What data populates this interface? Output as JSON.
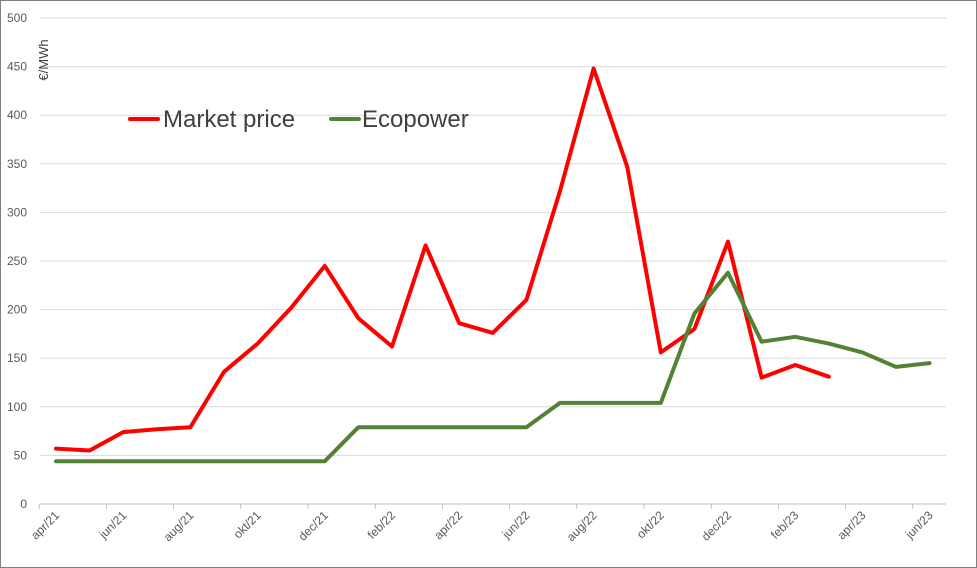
{
  "chart_data": {
    "type": "line",
    "ylabel": "€/MWh",
    "ylim": [
      0,
      500
    ],
    "yticks": [
      0,
      50,
      100,
      150,
      200,
      250,
      300,
      350,
      400,
      450,
      500
    ],
    "xticks": [
      "apr/21",
      "jun/21",
      "aug/21",
      "okt/21",
      "dec/21",
      "feb/22",
      "apr/22",
      "jun/22",
      "aug/22",
      "okt/22",
      "dec/22",
      "feb/23",
      "apr/23",
      "jun/23"
    ],
    "x": [
      "apr/21",
      "mei/21",
      "jun/21",
      "jul/21",
      "aug/21",
      "sep/21",
      "okt/21",
      "nov/21",
      "dec/21",
      "jan/22",
      "feb/22",
      "mrt/22",
      "apr/22",
      "mei/22",
      "jun/22",
      "jul/22",
      "aug/22",
      "sep/22",
      "okt/22",
      "nov/22",
      "dec/22",
      "jan/23",
      "feb/23",
      "mrt/23",
      "apr/23",
      "mei/23",
      "jun/23"
    ],
    "grid": true,
    "legend": "top-left",
    "series": [
      {
        "name": "Market price",
        "color": "#ff0000",
        "values": [
          57,
          55,
          74,
          77,
          79,
          136,
          165,
          202,
          245,
          191,
          162,
          266,
          186,
          176,
          210,
          322,
          448,
          347,
          156,
          180,
          270,
          130,
          143,
          131,
          null,
          null,
          null
        ]
      },
      {
        "name": "Ecopower",
        "color": "#548235",
        "values": [
          44,
          44,
          44,
          44,
          44,
          44,
          44,
          44,
          44,
          79,
          79,
          79,
          79,
          79,
          79,
          104,
          104,
          104,
          104,
          196,
          238,
          167,
          172,
          165,
          156,
          141,
          145
        ]
      }
    ]
  }
}
